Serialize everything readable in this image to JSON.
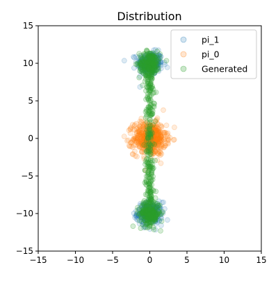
{
  "chart_data": {
    "type": "scatter",
    "title": "Distribution",
    "xlabel": "",
    "ylabel": "",
    "xlim": [
      -15,
      15
    ],
    "ylim": [
      -15,
      15
    ],
    "xticks": [
      -15,
      -10,
      -5,
      0,
      5,
      10,
      15
    ],
    "yticks": [
      -15,
      -10,
      -5,
      0,
      5,
      10,
      15
    ],
    "grid": false,
    "legend_position": "top-right",
    "series": [
      {
        "name": "pi_1",
        "color": "#1f77b4",
        "alpha": 0.15,
        "clusters": [
          {
            "center": [
              0,
              10
            ],
            "spread": [
              0.85,
              0.75
            ],
            "count": 260
          },
          {
            "center": [
              0,
              -10
            ],
            "spread": [
              0.85,
              0.75
            ],
            "count": 260
          }
        ]
      },
      {
        "name": "pi_0",
        "color": "#ff7f0e",
        "alpha": 0.15,
        "clusters": [
          {
            "center": [
              0,
              0
            ],
            "spread": [
              1.1,
              1.1
            ],
            "count": 520
          }
        ]
      },
      {
        "name": "Generated",
        "color": "#2ca02c",
        "alpha": 0.2,
        "clusters": [
          {
            "center": [
              0,
              10
            ],
            "spread": [
              0.7,
              0.8
            ],
            "count": 220
          },
          {
            "center": [
              0,
              -10
            ],
            "spread": [
              0.7,
              0.8
            ],
            "count": 220
          },
          {
            "center": [
              0,
              0
            ],
            "spread": [
              0.25,
              5.5
            ],
            "count": 260,
            "bridge": true
          }
        ]
      }
    ]
  }
}
